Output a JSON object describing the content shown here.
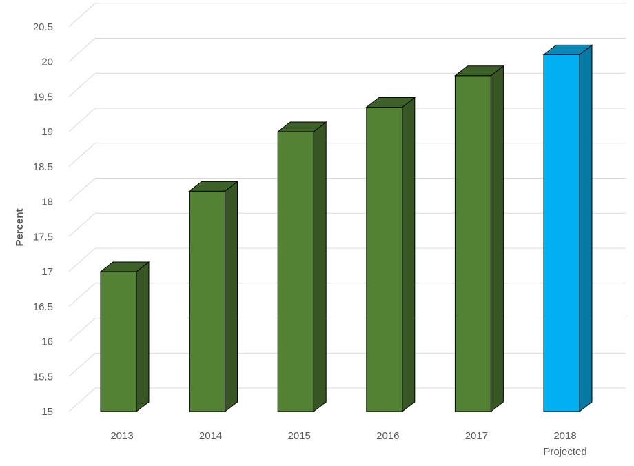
{
  "chart_data": {
    "type": "bar",
    "title": "",
    "xlabel": "",
    "ylabel": "Percent",
    "categories": [
      "2013",
      "2014",
      "2015",
      "2016",
      "2017",
      "2018"
    ],
    "category_sublabels": [
      "",
      "",
      "",
      "",
      "",
      "Projected"
    ],
    "values": [
      17.0,
      18.15,
      19.0,
      19.35,
      19.8,
      20.1
    ],
    "ylim": [
      15,
      20.5
    ],
    "yticks": [
      "15",
      "15.5",
      "16",
      "16.5",
      "17",
      "17.5",
      "18",
      "18.5",
      "19",
      "19.5",
      "20",
      "20.5"
    ],
    "grid": true,
    "legend": "none",
    "style": "3d-column",
    "colors": {
      "actual": {
        "front": "#548235",
        "side": "#375623",
        "top": "#3e6127"
      },
      "projected": {
        "front": "#00b0f0",
        "side": "#0679a5",
        "top": "#0a88b8"
      },
      "grid": "#d9d9d9",
      "text": "#595959"
    }
  }
}
